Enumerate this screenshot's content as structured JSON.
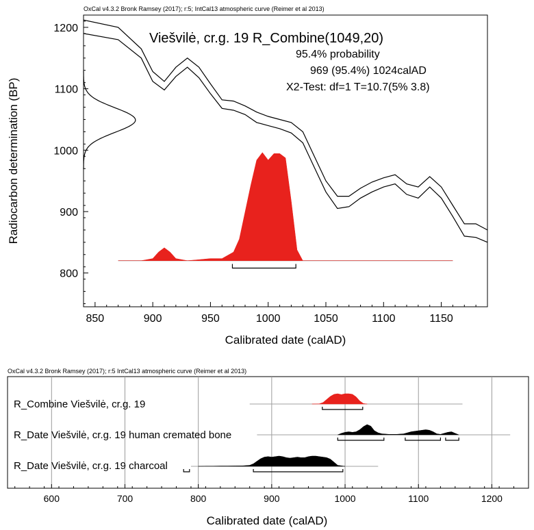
{
  "chart_data": [
    {
      "type": "area",
      "header": "OxCal v4.3.2 Bronk Ramsey (2017); r:5; IntCal13 atmospheric curve (Reimer et al 2013)",
      "title": "Viešvilė, cr.g. 19 R_Combine(1049,20)",
      "annotations": [
        "95.4% probability",
        "969 (95.4%) 1024calAD",
        "X2-Test: df=1 T=10.7(5% 3.8)"
      ],
      "xlabel": "Calibrated date (calAD)",
      "ylabel": "Radiocarbon determination (BP)",
      "xlim": [
        840,
        1190
      ],
      "ylim": [
        745,
        1220
      ],
      "xticks": [
        850,
        900,
        950,
        1000,
        1050,
        1100,
        1150
      ],
      "yticks": [
        800,
        900,
        1000,
        1100,
        1200
      ],
      "calibration_curve": {
        "x": [
          840,
          870,
          890,
          900,
          910,
          920,
          930,
          940,
          950,
          960,
          970,
          980,
          990,
          1000,
          1010,
          1020,
          1030,
          1040,
          1050,
          1060,
          1070,
          1080,
          1090,
          1100,
          1110,
          1120,
          1130,
          1140,
          1150,
          1160,
          1170,
          1180,
          1190
        ],
        "upper": [
          1212,
          1200,
          1165,
          1128,
          1112,
          1135,
          1150,
          1135,
          1108,
          1082,
          1080,
          1072,
          1062,
          1055,
          1050,
          1045,
          1030,
          990,
          950,
          925,
          925,
          938,
          948,
          955,
          960,
          945,
          940,
          957,
          940,
          910,
          880,
          880,
          870
        ],
        "lower": [
          1190,
          1180,
          1150,
          1112,
          1098,
          1120,
          1135,
          1118,
          1092,
          1068,
          1065,
          1058,
          1045,
          1040,
          1035,
          1028,
          1012,
          972,
          932,
          905,
          908,
          922,
          932,
          940,
          945,
          928,
          922,
          940,
          922,
          892,
          860,
          858,
          850
        ]
      },
      "measurement": {
        "label": "R_Combine(1049,20)",
        "mean_bp": 1049,
        "sigma": 20
      },
      "posterior": {
        "x": [
          870,
          890,
          900,
          905,
          910,
          915,
          920,
          930,
          940,
          950,
          960,
          970,
          975,
          980,
          985,
          990,
          995,
          1000,
          1005,
          1010,
          1015,
          1020,
          1025,
          1030,
          1160
        ],
        "density": [
          0,
          0,
          0.02,
          0.08,
          0.12,
          0.08,
          0.02,
          0,
          0.01,
          0.02,
          0.02,
          0.08,
          0.2,
          0.45,
          0.7,
          0.93,
          1.0,
          0.93,
          0.99,
          0.99,
          0.95,
          0.55,
          0.1,
          0,
          0
        ]
      },
      "range_bar": {
        "from": 969,
        "to": 1024,
        "probability": "95.4%"
      }
    },
    {
      "type": "area",
      "header": "OxCal v4.3.2 Bronk Ramsey (2017); r:5 IntCal13 atmospheric curve (Reimer et al 2013)",
      "xlabel": "Calibrated date (calAD)",
      "xlim": [
        540,
        1250
      ],
      "xticks": [
        600,
        700,
        800,
        900,
        1000,
        1100,
        1200
      ],
      "rows": [
        {
          "label": "R_Combine Viešvilė, cr.g. 19",
          "color": "#e8221d",
          "baseline": [
            870,
            1160
          ],
          "x": [
            955,
            960,
            965,
            970,
            975,
            980,
            985,
            990,
            995,
            1000,
            1005,
            1010,
            1015,
            1020,
            1025,
            1030
          ],
          "density": [
            0,
            0.01,
            0.02,
            0.15,
            0.45,
            0.75,
            0.95,
            1.0,
            0.92,
            1.0,
            1.0,
            0.95,
            0.7,
            0.3,
            0.05,
            0
          ],
          "ranges": [
            [
              969,
              1024
            ]
          ]
        },
        {
          "label": "R_Date Viešvilė, cr.g. 19 human cremated bone",
          "color": "#000000",
          "baseline": [
            880,
            1225
          ],
          "x": [
            990,
            995,
            1000,
            1005,
            1010,
            1015,
            1020,
            1025,
            1030,
            1035,
            1040,
            1045,
            1050,
            1060,
            1070,
            1080,
            1090,
            1100,
            1110,
            1115,
            1120,
            1125,
            1130,
            1135,
            1140,
            1145,
            1150,
            1155
          ],
          "density": [
            0,
            0.15,
            0.25,
            0.3,
            0.25,
            0.3,
            0.5,
            0.8,
            1.0,
            0.85,
            0.4,
            0.2,
            0.1,
            0.05,
            0.05,
            0.1,
            0.3,
            0.4,
            0.5,
            0.45,
            0.3,
            0.1,
            0.05,
            0.15,
            0.25,
            0.3,
            0.15,
            0
          ],
          "ranges": [
            [
              990,
              1053
            ],
            [
              1082,
              1130
            ],
            [
              1137,
              1155
            ]
          ]
        },
        {
          "label": "R_Date Viešvilė, cr.g. 19 charcoal",
          "color": "#000000",
          "baseline": [
            790,
            1045
          ],
          "x": [
            800,
            810,
            820,
            830,
            840,
            850,
            860,
            870,
            875,
            880,
            885,
            890,
            895,
            900,
            905,
            910,
            915,
            920,
            925,
            930,
            935,
            940,
            945,
            950,
            955,
            960,
            965,
            970,
            975,
            980,
            985,
            990,
            1000
          ],
          "density": [
            0,
            0.02,
            0.02,
            0.03,
            0.03,
            0.04,
            0.05,
            0.1,
            0.25,
            0.5,
            0.75,
            0.9,
            0.95,
            0.9,
            0.95,
            1.0,
            0.95,
            0.85,
            0.8,
            0.85,
            0.9,
            0.85,
            0.85,
            0.95,
            1.0,
            1.0,
            0.95,
            0.9,
            0.85,
            0.7,
            0.4,
            0.1,
            0
          ],
          "ranges": [
            [
              780,
              788
            ],
            [
              875,
              997
            ]
          ]
        }
      ]
    }
  ]
}
